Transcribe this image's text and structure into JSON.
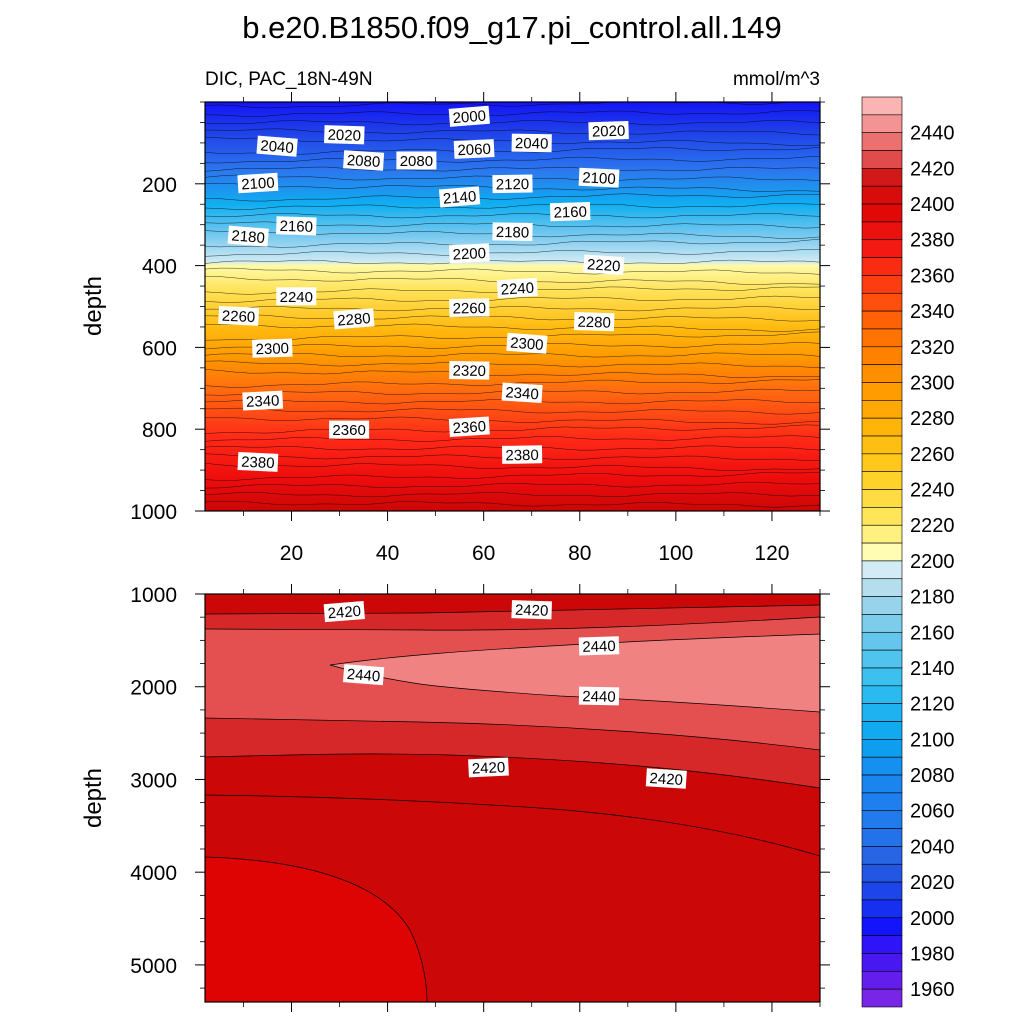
{
  "title": "b.e20.B1850.f09_g17.pi_control.all.149",
  "subtitle_left": "DIC, PAC_18N-49N",
  "subtitle_right": "mmol/m^3",
  "chart_data": {
    "type": "contour",
    "variable": "DIC",
    "region": "PAC_18N-49N",
    "units": "mmol/m^3",
    "panels": [
      {
        "name": "upper",
        "ylabel": "depth",
        "ylim": [
          0,
          1000
        ],
        "y_reversed": true,
        "yticks": [
          200,
          400,
          600,
          800,
          1000
        ],
        "xlim": [
          2,
          130
        ],
        "xticks": [
          20,
          40,
          60,
          80,
          100,
          120
        ],
        "contour_labels": [
          {
            "text": "2000",
            "x": 57,
            "y": 35
          },
          {
            "text": "2020",
            "x": 31,
            "y": 80
          },
          {
            "text": "2020",
            "x": 86,
            "y": 70
          },
          {
            "text": "2040",
            "x": 17,
            "y": 108
          },
          {
            "text": "2040",
            "x": 70,
            "y": 100
          },
          {
            "text": "2060",
            "x": 58,
            "y": 115
          },
          {
            "text": "2080",
            "x": 35,
            "y": 143
          },
          {
            "text": "2080",
            "x": 46,
            "y": 143
          },
          {
            "text": "2100",
            "x": 13,
            "y": 198
          },
          {
            "text": "2100",
            "x": 84,
            "y": 185
          },
          {
            "text": "2120",
            "x": 66,
            "y": 200
          },
          {
            "text": "2140",
            "x": 55,
            "y": 232
          },
          {
            "text": "2160",
            "x": 21,
            "y": 303
          },
          {
            "text": "2160",
            "x": 78,
            "y": 268
          },
          {
            "text": "2180",
            "x": 11,
            "y": 328
          },
          {
            "text": "2180",
            "x": 66,
            "y": 317
          },
          {
            "text": "2200",
            "x": 57,
            "y": 370
          },
          {
            "text": "2220",
            "x": 85,
            "y": 398
          },
          {
            "text": "2240",
            "x": 21,
            "y": 475
          },
          {
            "text": "2240",
            "x": 67,
            "y": 455
          },
          {
            "text": "2260",
            "x": 9,
            "y": 523
          },
          {
            "text": "2260",
            "x": 57,
            "y": 503
          },
          {
            "text": "2280",
            "x": 33,
            "y": 530
          },
          {
            "text": "2280",
            "x": 83,
            "y": 537
          },
          {
            "text": "2300",
            "x": 16,
            "y": 602
          },
          {
            "text": "2300",
            "x": 69,
            "y": 590
          },
          {
            "text": "2320",
            "x": 57,
            "y": 656
          },
          {
            "text": "2340",
            "x": 14,
            "y": 730
          },
          {
            "text": "2340",
            "x": 68,
            "y": 711
          },
          {
            "text": "2360",
            "x": 32,
            "y": 801
          },
          {
            "text": "2360",
            "x": 57,
            "y": 794
          },
          {
            "text": "2380",
            "x": 13,
            "y": 880
          },
          {
            "text": "2380",
            "x": 68,
            "y": 862
          }
        ]
      },
      {
        "name": "lower",
        "ylabel": "depth",
        "ylim": [
          1000,
          5400
        ],
        "y_reversed": true,
        "yticks": [
          1000,
          2000,
          3000,
          4000,
          5000
        ],
        "xlim": [
          2,
          130
        ],
        "contour_labels": [
          {
            "text": "2420",
            "x": 31,
            "y": 1190
          },
          {
            "text": "2420",
            "x": 70,
            "y": 1170
          },
          {
            "text": "2440",
            "x": 84,
            "y": 1560
          },
          {
            "text": "2440",
            "x": 35,
            "y": 1870
          },
          {
            "text": "2440",
            "x": 84,
            "y": 2100
          },
          {
            "text": "2420",
            "x": 61,
            "y": 2870
          },
          {
            "text": "2420",
            "x": 98,
            "y": 2990
          }
        ]
      }
    ],
    "colorbar": {
      "levels_min": 1950,
      "levels_max": 2460,
      "step": 10,
      "labels": [
        "2440",
        "2420",
        "2400",
        "2380",
        "2360",
        "2340",
        "2320",
        "2300",
        "2280",
        "2260",
        "2240",
        "2220",
        "2200",
        "2180",
        "2160",
        "2140",
        "2120",
        "2100",
        "2080",
        "2060",
        "2040",
        "2020",
        "2000",
        "1980",
        "1960"
      ]
    }
  }
}
